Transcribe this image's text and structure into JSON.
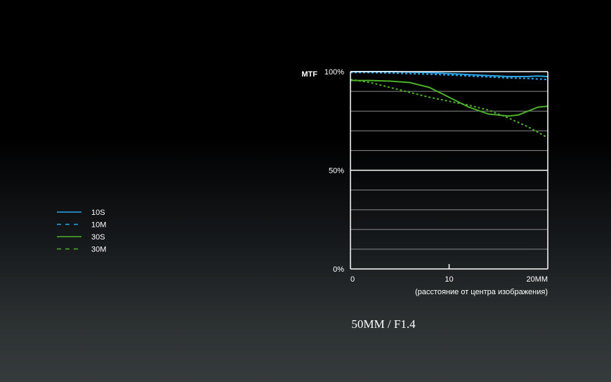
{
  "chart_data": {
    "type": "line",
    "ylabel": "MTF",
    "xlabel": "(расстояние от центра изображения)",
    "caption": "50MM / F1.4",
    "xlim": [
      0,
      20
    ],
    "ylim": [
      0,
      100
    ],
    "x_ticks": [
      {
        "value": 0,
        "label": "0"
      },
      {
        "value": 10,
        "label": "10"
      },
      {
        "value": 20,
        "label": "20MM"
      }
    ],
    "y_ticks": [
      {
        "value": 100,
        "label": "100%"
      },
      {
        "value": 50,
        "label": "50%"
      },
      {
        "value": 0,
        "label": "0%"
      }
    ],
    "gridlines": [
      10,
      20,
      30,
      40,
      50,
      60,
      70,
      80,
      90
    ],
    "major_gridline": 50,
    "legend_position": "left",
    "series": [
      {
        "name": "10S",
        "color": "#2aa6e8",
        "dash": "solid",
        "x": [
          0,
          2,
          4,
          6,
          8,
          10,
          12,
          14,
          16,
          18,
          19,
          20
        ],
        "y": [
          100,
          100,
          100,
          99.8,
          99.5,
          99,
          98.5,
          98,
          97.5,
          97.5,
          97.8,
          97.5
        ]
      },
      {
        "name": "10M",
        "color": "#2aa6e8",
        "dash": "dashed",
        "x": [
          0,
          2,
          4,
          6,
          8,
          10,
          12,
          14,
          16,
          18,
          20
        ],
        "y": [
          99.5,
          99.5,
          99.3,
          99,
          98.7,
          98.3,
          97.8,
          97.3,
          96.8,
          96.5,
          96
        ]
      },
      {
        "name": "30S",
        "color": "#4caf2a",
        "dash": "solid",
        "x": [
          0,
          2,
          4,
          6,
          8,
          10,
          12,
          14,
          16,
          17,
          18,
          19,
          20
        ],
        "y": [
          95.5,
          95.5,
          95.2,
          94.5,
          92,
          87,
          82,
          78.5,
          77.5,
          78,
          80,
          82,
          82.5
        ]
      },
      {
        "name": "30M",
        "color": "#4caf2a",
        "dash": "dashed",
        "x": [
          0,
          2,
          4,
          6,
          8,
          10,
          12,
          14,
          16,
          18,
          20
        ],
        "y": [
          96,
          94.5,
          92,
          89.5,
          87,
          85,
          83,
          80.5,
          76.5,
          72,
          66.5
        ]
      }
    ]
  }
}
